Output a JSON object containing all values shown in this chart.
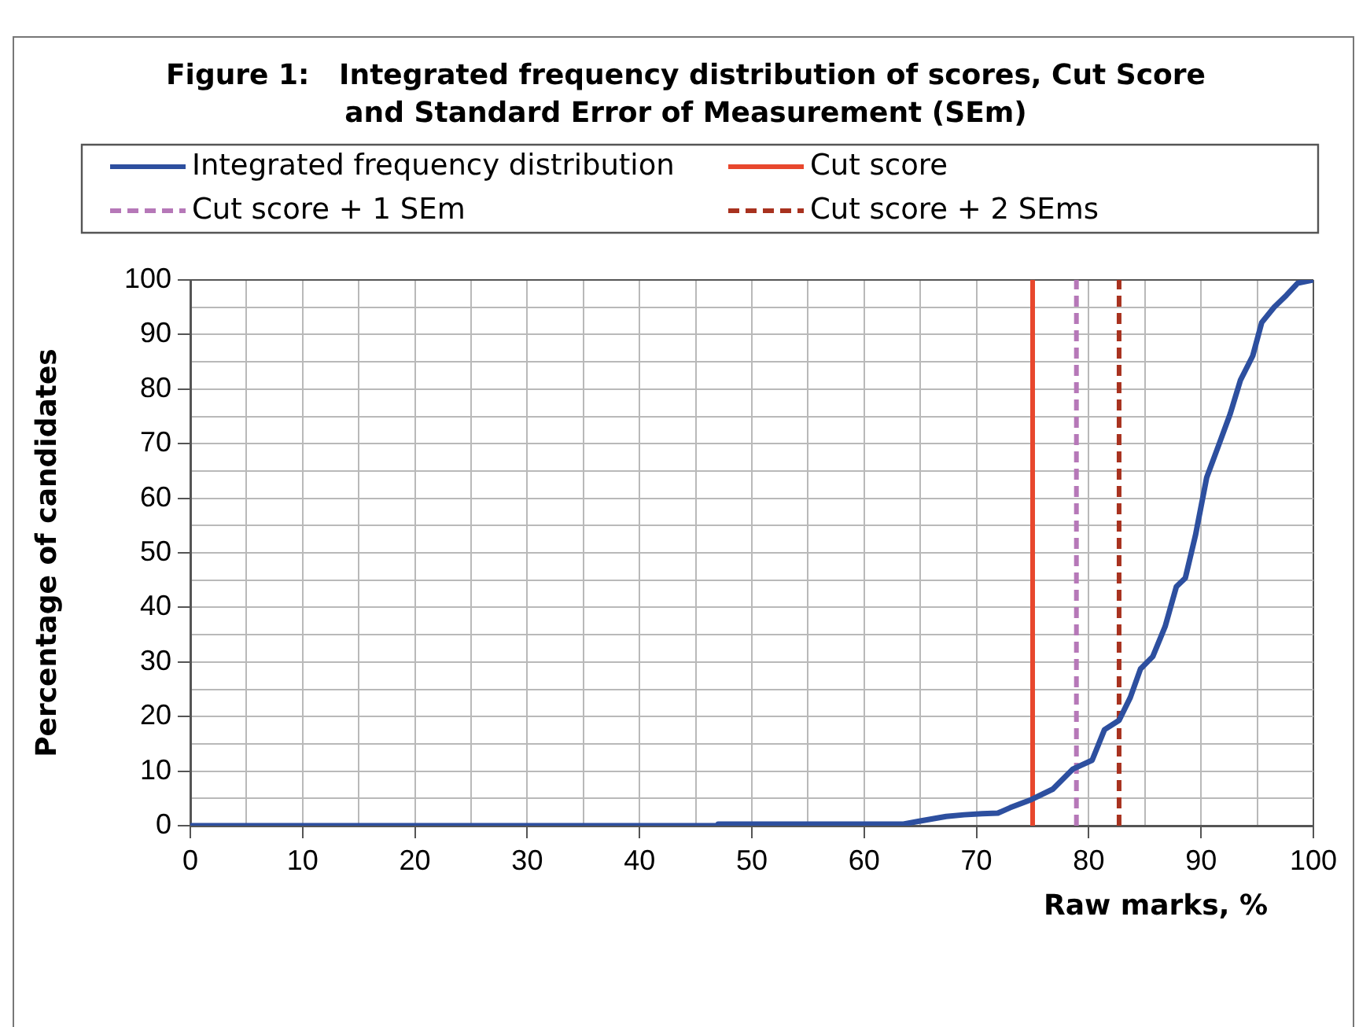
{
  "chart_data": {
    "type": "line",
    "title": "Figure 1:   Integrated frequency distribution of scores, Cut Score and Standard Error of Measurement (SEm)",
    "xlabel": "Raw marks, %",
    "ylabel": "Percentage of candidates",
    "series": [
      {
        "name": "Integrated frequency distribution",
        "color": "#2d4f9f",
        "x": [
          0,
          47,
          47,
          63.5,
          65.1,
          67.3,
          68.9,
          70.5,
          71.9,
          73,
          74.9,
          76.8,
          78.6,
          80.3,
          81.4,
          82.7,
          83.7,
          84.6,
          85.7,
          86.8,
          87.8,
          88.6,
          89.5,
          90.5,
          91.6,
          92.6,
          93.5,
          94.6,
          95.4,
          96.5,
          97.6,
          98.6,
          100
        ],
        "values": [
          0,
          0,
          0.3,
          0.3,
          0.9,
          1.7,
          2,
          2.2,
          2.3,
          3.3,
          4.8,
          6.7,
          10.4,
          12,
          17.6,
          19.3,
          23.5,
          28.7,
          31,
          36.5,
          43.8,
          45.4,
          53.2,
          63.8,
          69.9,
          75.5,
          81.6,
          86.1,
          92.2,
          95,
          97.2,
          99.4,
          100
        ]
      }
    ],
    "ref_lines": [
      {
        "axis": "x",
        "value": 75,
        "label": "Cut score",
        "color": "#e8472d",
        "line_style": "solid"
      },
      {
        "axis": "x",
        "value": 78.9,
        "label": "Cut score + 1 SEm",
        "color": "#b678b8",
        "line_style": "dashed"
      },
      {
        "axis": "x",
        "value": 82.7,
        "label": "Cut score + 2 SEms",
        "color": "#a8321f",
        "line_style": "dashed"
      }
    ],
    "xlim": [
      0,
      100
    ],
    "ylim": [
      0,
      100
    ],
    "xticks": [
      0,
      {
        "value": 5,
        "label": null
      },
      10,
      {
        "value": 15,
        "label": null
      },
      20,
      {
        "value": 25,
        "label": null
      },
      30,
      {
        "value": 35,
        "label": null
      },
      40,
      {
        "value": 45,
        "label": null
      },
      50,
      {
        "value": 55,
        "label": null
      },
      60,
      {
        "value": 65,
        "label": null
      },
      70,
      {
        "value": 75,
        "label": null
      },
      80,
      {
        "value": 85,
        "label": null
      },
      90,
      {
        "value": 95,
        "label": null
      },
      100
    ],
    "yticks": [
      0,
      {
        "value": 5,
        "label": null
      },
      10,
      {
        "value": 15,
        "label": null
      },
      20,
      {
        "value": 25,
        "label": null
      },
      30,
      {
        "value": 35,
        "label": null
      },
      40,
      {
        "value": 45,
        "label": null
      },
      50,
      {
        "value": 55,
        "label": null
      },
      60,
      {
        "value": 65,
        "label": null
      },
      70,
      {
        "value": 75,
        "label": null
      },
      80,
      {
        "value": 85,
        "label": null
      },
      90,
      {
        "value": 95,
        "label": null
      },
      100
    ],
    "grid": true,
    "legend": "top"
  }
}
